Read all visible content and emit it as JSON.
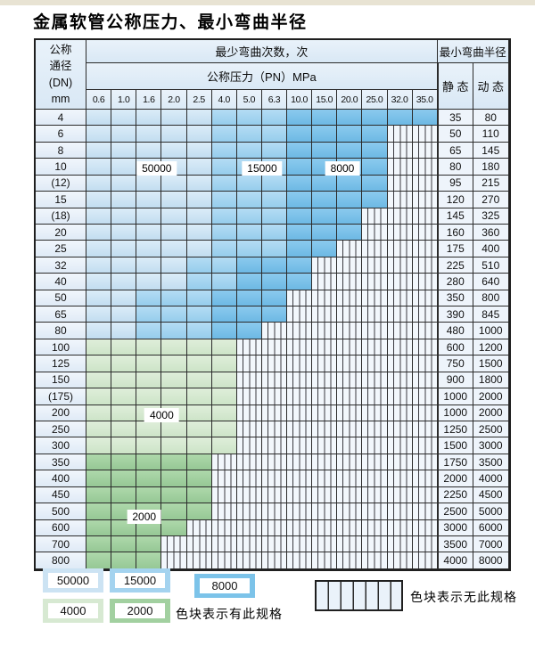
{
  "page": {
    "title": "金属软管公称压力、最小弯曲半径"
  },
  "chart_data": {
    "type": "table",
    "title": "金属软管公称压力、最小弯曲半径",
    "header": {
      "dn_lines": [
        "公称",
        "通径",
        "(DN)",
        "mm"
      ],
      "bend_cycles": "最少弯曲次数，次",
      "pressure": "公称压力（PN）MPa",
      "radius": "最小弯曲半径",
      "static": "静 态",
      "dynamic": "动 态"
    },
    "pressures_MPa": [
      "0.6",
      "1.0",
      "1.6",
      "2.0",
      "2.5",
      "4.0",
      "5.0",
      "6.3",
      "10.0",
      "15.0",
      "20.0",
      "25.0",
      "32.0",
      "35.0"
    ],
    "zone_meanings": {
      "b1": "50000次",
      "b2": "15000次",
      "b3": "8000次",
      "g1": "4000次",
      "g2": "2000次",
      "h": "无此规格"
    },
    "rows": [
      {
        "dn": "4",
        "spans": [
          [
            "b1",
            5
          ],
          [
            "b2",
            3
          ],
          [
            "b3",
            6
          ]
        ],
        "static": "35",
        "dynamic": "80"
      },
      {
        "dn": "6",
        "spans": [
          [
            "b1",
            5
          ],
          [
            "b2",
            3
          ],
          [
            "b3",
            4
          ]
        ],
        "static": "50",
        "dynamic": "110"
      },
      {
        "dn": "8",
        "spans": [
          [
            "b1",
            5
          ],
          [
            "b2",
            3
          ],
          [
            "b3",
            4
          ]
        ],
        "static": "65",
        "dynamic": "145"
      },
      {
        "dn": "10",
        "spans": [
          [
            "b1",
            5
          ],
          [
            "b2",
            3
          ],
          [
            "b3",
            4
          ]
        ],
        "static": "80",
        "dynamic": "180"
      },
      {
        "dn": "(12)",
        "spans": [
          [
            "b1",
            5
          ],
          [
            "b2",
            3
          ],
          [
            "b3",
            4
          ]
        ],
        "static": "95",
        "dynamic": "215"
      },
      {
        "dn": "15",
        "spans": [
          [
            "b1",
            5
          ],
          [
            "b2",
            3
          ],
          [
            "b3",
            4
          ]
        ],
        "static": "120",
        "dynamic": "270"
      },
      {
        "dn": "(18)",
        "spans": [
          [
            "b1",
            5
          ],
          [
            "b2",
            3
          ],
          [
            "b3",
            3
          ]
        ],
        "static": "145",
        "dynamic": "325"
      },
      {
        "dn": "20",
        "spans": [
          [
            "b1",
            5
          ],
          [
            "b2",
            3
          ],
          [
            "b3",
            3
          ]
        ],
        "static": "160",
        "dynamic": "360"
      },
      {
        "dn": "25",
        "spans": [
          [
            "b1",
            5
          ],
          [
            "b2",
            3
          ],
          [
            "b3",
            2
          ]
        ],
        "static": "175",
        "dynamic": "400"
      },
      {
        "dn": "32",
        "spans": [
          [
            "b1",
            4
          ],
          [
            "b2",
            2
          ],
          [
            "b3",
            3
          ]
        ],
        "static": "225",
        "dynamic": "510"
      },
      {
        "dn": "40",
        "spans": [
          [
            "b1",
            4
          ],
          [
            "b2",
            2
          ],
          [
            "b3",
            3
          ]
        ],
        "static": "280",
        "dynamic": "640"
      },
      {
        "dn": "50",
        "spans": [
          [
            "b1",
            2
          ],
          [
            "b2",
            3
          ],
          [
            "b3",
            3
          ]
        ],
        "static": "350",
        "dynamic": "800"
      },
      {
        "dn": "65",
        "spans": [
          [
            "b1",
            2
          ],
          [
            "b2",
            3
          ],
          [
            "b3",
            3
          ]
        ],
        "static": "390",
        "dynamic": "845"
      },
      {
        "dn": "80",
        "spans": [
          [
            "b1",
            2
          ],
          [
            "b2",
            3
          ],
          [
            "b3",
            2
          ]
        ],
        "static": "480",
        "dynamic": "1000"
      },
      {
        "dn": "100",
        "spans": [
          [
            "g1",
            6
          ]
        ],
        "static": "600",
        "dynamic": "1200"
      },
      {
        "dn": "125",
        "spans": [
          [
            "g1",
            6
          ]
        ],
        "static": "750",
        "dynamic": "1500"
      },
      {
        "dn": "150",
        "spans": [
          [
            "g1",
            6
          ]
        ],
        "static": "900",
        "dynamic": "1800"
      },
      {
        "dn": "(175)",
        "spans": [
          [
            "g1",
            6
          ]
        ],
        "static": "1000",
        "dynamic": "2000"
      },
      {
        "dn": "200",
        "spans": [
          [
            "g1",
            6
          ]
        ],
        "static": "1000",
        "dynamic": "2000"
      },
      {
        "dn": "250",
        "spans": [
          [
            "g1",
            6
          ]
        ],
        "static": "1250",
        "dynamic": "2500"
      },
      {
        "dn": "300",
        "spans": [
          [
            "g1",
            6
          ]
        ],
        "static": "1500",
        "dynamic": "3000"
      },
      {
        "dn": "350",
        "spans": [
          [
            "g2",
            5
          ]
        ],
        "static": "1750",
        "dynamic": "3500"
      },
      {
        "dn": "400",
        "spans": [
          [
            "g2",
            5
          ]
        ],
        "static": "2000",
        "dynamic": "4000"
      },
      {
        "dn": "450",
        "spans": [
          [
            "g2",
            5
          ]
        ],
        "static": "2250",
        "dynamic": "4500"
      },
      {
        "dn": "500",
        "spans": [
          [
            "g2",
            5
          ]
        ],
        "static": "2500",
        "dynamic": "5000"
      },
      {
        "dn": "600",
        "spans": [
          [
            "g2",
            4
          ]
        ],
        "static": "3000",
        "dynamic": "6000"
      },
      {
        "dn": "700",
        "spans": [
          [
            "g2",
            3
          ]
        ],
        "static": "3500",
        "dynamic": "7000"
      },
      {
        "dn": "800",
        "spans": [
          [
            "g2",
            3
          ]
        ],
        "static": "4000",
        "dynamic": "8000"
      }
    ],
    "overlay_labels": [
      {
        "text": "50000",
        "col_units": 2.8,
        "row_units": 3.6
      },
      {
        "text": "15000",
        "col_units": 7.0,
        "row_units": 3.6
      },
      {
        "text": "8000",
        "col_units": 10.2,
        "row_units": 3.6
      },
      {
        "text": "4000",
        "col_units": 3.0,
        "row_units": 18.6
      },
      {
        "text": "2000",
        "col_units": 2.3,
        "row_units": 24.8
      }
    ]
  },
  "colors": {
    "b1": "#cce3f3",
    "b2": "#a4d3ef",
    "b3": "#7cc3e9",
    "g1": "#d7e9d2",
    "g2": "#a2d0a0",
    "grid_line": "#2b2b2b",
    "hatch_bg": "#f2f7fc"
  },
  "legend": {
    "available": [
      {
        "label": "50000",
        "zone": "b1"
      },
      {
        "label": "15000",
        "zone": "b2"
      },
      {
        "label": "8000",
        "zone": "b3"
      },
      {
        "label": "4000",
        "zone": "g1"
      },
      {
        "label": "2000",
        "zone": "g2"
      }
    ],
    "available_note": "色块表示有此规格",
    "unavailable_note": "色块表示无此规格"
  }
}
